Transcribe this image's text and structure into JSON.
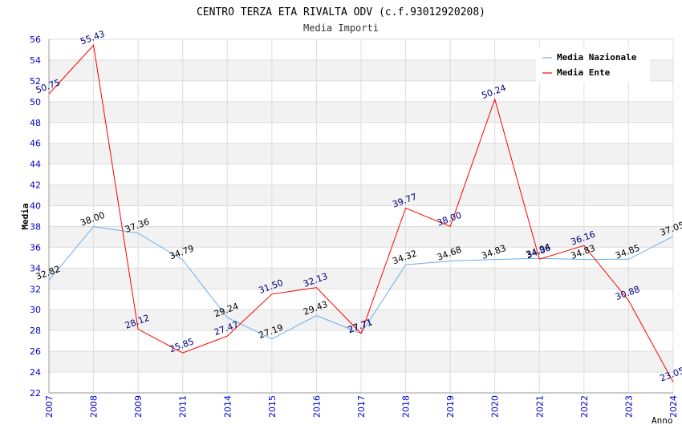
{
  "chart_data": {
    "type": "line",
    "title": "CENTRO TERZA ETA RIVALTA ODV (c.f.93012920208)",
    "subtitle": "Media Importi",
    "xlabel": "Anno",
    "ylabel": "Media",
    "ylim": [
      22,
      56
    ],
    "ytick_step": 2,
    "grid": true,
    "legend_position": "top-right",
    "categories": [
      "2007",
      "2008",
      "2009",
      "2011",
      "2014",
      "2015",
      "2016",
      "2017",
      "2018",
      "2019",
      "2020",
      "2021",
      "2022",
      "2023",
      "2024"
    ],
    "series": [
      {
        "name": "Media Nazionale",
        "color": "#6aaeea",
        "label_color": "#000000",
        "values": [
          32.82,
          38.0,
          37.36,
          34.79,
          29.24,
          27.19,
          29.43,
          27.71,
          34.32,
          34.68,
          34.83,
          34.94,
          34.83,
          34.85,
          37.05
        ],
        "labels": [
          "32.82",
          "38.00",
          "37.36",
          "34.79",
          "29.24",
          "27.19",
          "29.43",
          "27.71",
          "34.32",
          "34.68",
          "34.83",
          "34.94",
          "34.83",
          "34.85",
          "37.05"
        ]
      },
      {
        "name": "Media Ente",
        "color": "#ff0000",
        "label_color": "#000080",
        "values": [
          50.75,
          55.43,
          28.12,
          25.85,
          27.47,
          31.5,
          32.13,
          27.71,
          39.77,
          38.0,
          50.24,
          34.86,
          36.16,
          30.88,
          23.05
        ],
        "labels": [
          "50.75",
          "55.43",
          "28.12",
          "25.85",
          "27.47",
          "31.50",
          "32.13",
          "27.71",
          "39.77",
          "38.00",
          "50.24",
          "34.86",
          "36.16",
          "30.88",
          "23.05"
        ]
      }
    ]
  },
  "colors": {
    "axis_tick_label": "#0000cc",
    "band": "#f2f2f2",
    "gridline": "#dddddd",
    "axis": "#999999"
  }
}
